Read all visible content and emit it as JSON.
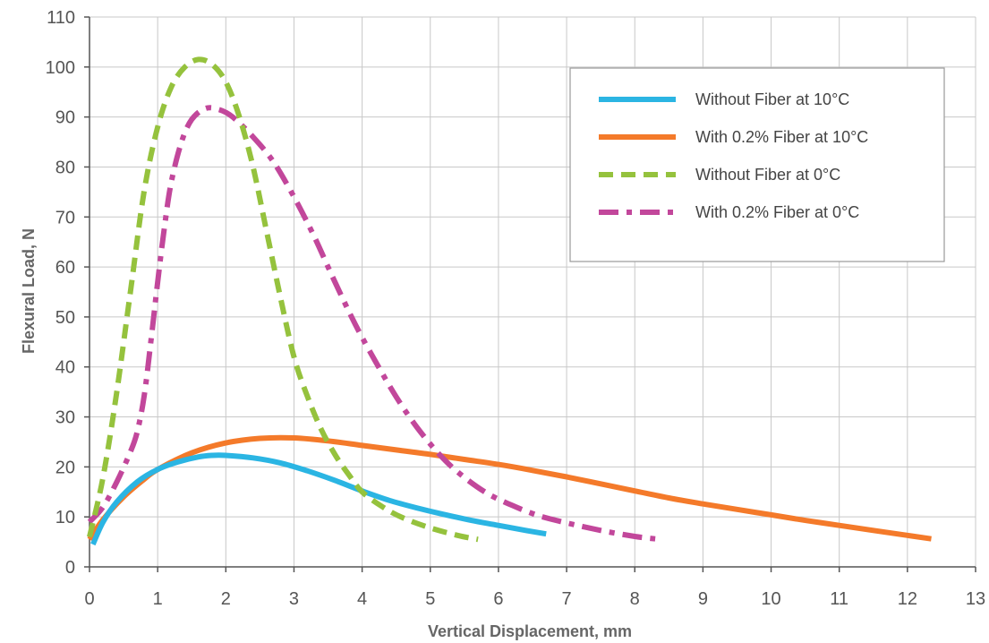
{
  "chart_data": {
    "type": "line",
    "title": "",
    "xlabel": "Vertical Displacement, mm",
    "ylabel": "Flexural Load, N",
    "xlim": [
      0,
      13
    ],
    "ylim": [
      0,
      110
    ],
    "xticks": [
      0,
      1,
      2,
      3,
      4,
      5,
      6,
      7,
      8,
      9,
      10,
      11,
      12,
      13
    ],
    "yticks": [
      0,
      10,
      20,
      30,
      40,
      50,
      60,
      70,
      80,
      90,
      100,
      110
    ],
    "grid": true,
    "legend_position": "top-right",
    "series": [
      {
        "name": "Without Fiber at 10°C",
        "color": "#2bb5e3",
        "dash": "solid",
        "points": [
          [
            0.05,
            4.5
          ],
          [
            0.2,
            9
          ],
          [
            0.4,
            13
          ],
          [
            0.7,
            17
          ],
          [
            1.0,
            19.5
          ],
          [
            1.3,
            21
          ],
          [
            1.6,
            22
          ],
          [
            1.8,
            22.3
          ],
          [
            2.0,
            22.3
          ],
          [
            2.4,
            21.8
          ],
          [
            2.8,
            20.8
          ],
          [
            3.2,
            19.2
          ],
          [
            3.6,
            17.3
          ],
          [
            4.0,
            15.2
          ],
          [
            4.4,
            13.3
          ],
          [
            4.8,
            11.8
          ],
          [
            5.2,
            10.5
          ],
          [
            5.6,
            9.3
          ],
          [
            6.0,
            8.3
          ],
          [
            6.4,
            7.3
          ],
          [
            6.7,
            6.6
          ]
        ]
      },
      {
        "name": "With 0.2% Fiber at 10°C",
        "color": "#f47a2a",
        "dash": "solid",
        "points": [
          [
            0.0,
            5.5
          ],
          [
            0.2,
            9.5
          ],
          [
            0.5,
            14
          ],
          [
            0.8,
            17.5
          ],
          [
            1.0,
            19.5
          ],
          [
            1.5,
            22.8
          ],
          [
            2.0,
            24.8
          ],
          [
            2.5,
            25.7
          ],
          [
            3.0,
            25.8
          ],
          [
            3.5,
            25.2
          ],
          [
            4.0,
            24.3
          ],
          [
            4.5,
            23.4
          ],
          [
            5.0,
            22.5
          ],
          [
            5.5,
            21.5
          ],
          [
            6.0,
            20.5
          ],
          [
            6.5,
            19.3
          ],
          [
            7.0,
            18.0
          ],
          [
            7.5,
            16.6
          ],
          [
            8.0,
            15.2
          ],
          [
            8.5,
            13.8
          ],
          [
            9.0,
            12.6
          ],
          [
            9.5,
            11.5
          ],
          [
            10.0,
            10.4
          ],
          [
            10.5,
            9.3
          ],
          [
            11.0,
            8.3
          ],
          [
            11.5,
            7.3
          ],
          [
            12.0,
            6.3
          ],
          [
            12.35,
            5.6
          ]
        ]
      },
      {
        "name": "Without Fiber at 0°C",
        "color": "#95c23d",
        "dash": "dashed",
        "points": [
          [
            0.0,
            6
          ],
          [
            0.2,
            18
          ],
          [
            0.4,
            35
          ],
          [
            0.6,
            55
          ],
          [
            0.8,
            75
          ],
          [
            1.0,
            88
          ],
          [
            1.2,
            96
          ],
          [
            1.4,
            100
          ],
          [
            1.6,
            101.5
          ],
          [
            1.8,
            100.5
          ],
          [
            2.0,
            97
          ],
          [
            2.2,
            90
          ],
          [
            2.4,
            80
          ],
          [
            2.6,
            67
          ],
          [
            2.8,
            54
          ],
          [
            3.0,
            42
          ],
          [
            3.2,
            34
          ],
          [
            3.4,
            27.5
          ],
          [
            3.6,
            22.5
          ],
          [
            3.8,
            18.5
          ],
          [
            4.0,
            15
          ],
          [
            4.3,
            12
          ],
          [
            4.6,
            9.8
          ],
          [
            5.0,
            7.8
          ],
          [
            5.4,
            6.3
          ],
          [
            5.7,
            5.5
          ]
        ]
      },
      {
        "name": "With 0.2% Fiber at 0°C",
        "color": "#c2479b",
        "dash": "dashdot",
        "points": [
          [
            0.0,
            9
          ],
          [
            0.2,
            12
          ],
          [
            0.4,
            17
          ],
          [
            0.6,
            23
          ],
          [
            0.7,
            27
          ],
          [
            0.8,
            34
          ],
          [
            0.9,
            45
          ],
          [
            1.0,
            57
          ],
          [
            1.1,
            68
          ],
          [
            1.2,
            77
          ],
          [
            1.35,
            85
          ],
          [
            1.5,
            89.5
          ],
          [
            1.7,
            91.7
          ],
          [
            1.9,
            91.5
          ],
          [
            2.1,
            90
          ],
          [
            2.4,
            86
          ],
          [
            2.7,
            81
          ],
          [
            3.0,
            74
          ],
          [
            3.3,
            66
          ],
          [
            3.6,
            57
          ],
          [
            3.9,
            48.5
          ],
          [
            4.2,
            41
          ],
          [
            4.5,
            34
          ],
          [
            4.8,
            28
          ],
          [
            5.1,
            23
          ],
          [
            5.4,
            19
          ],
          [
            5.8,
            15
          ],
          [
            6.2,
            12.3
          ],
          [
            6.6,
            10.2
          ],
          [
            7.0,
            8.8
          ],
          [
            7.5,
            7.3
          ],
          [
            8.0,
            6.1
          ],
          [
            8.3,
            5.6
          ]
        ]
      }
    ]
  }
}
